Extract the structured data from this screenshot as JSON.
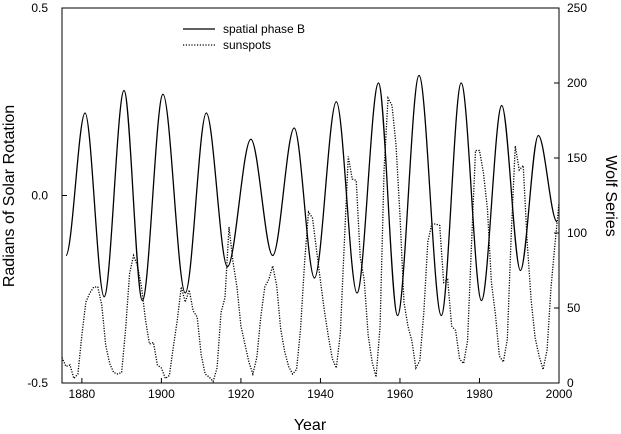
{
  "chart_data": {
    "type": "line",
    "title": "",
    "xlabel": "Year",
    "ylabel": "Radians of Solar Rotation",
    "y2label": "Wolf Series",
    "xlim": [
      1875,
      2000
    ],
    "ylim": [
      -0.5,
      0.5
    ],
    "y2lim": [
      0,
      250
    ],
    "x_ticks": [
      "1880",
      "1900",
      "1920",
      "1940",
      "1960",
      "1980",
      "2000"
    ],
    "y_ticks": [
      "0.5",
      "0.0",
      "-0.5"
    ],
    "y2_ticks": [
      "250",
      "200",
      "150",
      "100",
      "50",
      "0"
    ],
    "legend_position": "top-center",
    "grid": false,
    "series": [
      {
        "name": "spatial phase B",
        "axis": "left",
        "style": "solid",
        "color": "#000000",
        "x": [
          1876.0,
          1880.8,
          1885.6,
          1890.6,
          1895.2,
          1900.4,
          1906.0,
          1911.3,
          1916.6,
          1922.5,
          1928.0,
          1933.4,
          1938.5,
          1944.0,
          1949.2,
          1954.6,
          1959.4,
          1964.8,
          1970.4,
          1975.4,
          1980.5,
          1985.6,
          1990.3,
          1994.8,
          1999.5
        ],
        "values": [
          -0.16,
          0.22,
          -0.27,
          0.28,
          -0.28,
          0.27,
          -0.26,
          0.22,
          -0.19,
          0.15,
          -0.16,
          0.18,
          -0.22,
          0.25,
          -0.26,
          0.3,
          -0.32,
          0.32,
          -0.32,
          0.3,
          -0.28,
          0.24,
          -0.2,
          0.16,
          -0.07
        ]
      },
      {
        "name": "sunspots",
        "axis": "right",
        "style": "dotted",
        "color": "#000000",
        "x": [
          1875.0,
          1876.0,
          1877.0,
          1878.0,
          1879.0,
          1880.0,
          1881.0,
          1882.0,
          1883.0,
          1884.0,
          1885.0,
          1886.0,
          1887.0,
          1888.0,
          1889.0,
          1890.0,
          1891.0,
          1892.0,
          1893.0,
          1894.0,
          1895.0,
          1896.0,
          1897.0,
          1898.0,
          1899.0,
          1900.0,
          1901.0,
          1902.0,
          1903.0,
          1904.0,
          1905.0,
          1906.0,
          1907.0,
          1908.0,
          1909.0,
          1910.0,
          1911.0,
          1912.0,
          1913.0,
          1914.0,
          1915.0,
          1916.0,
          1917.0,
          1918.0,
          1919.0,
          1920.0,
          1921.0,
          1922.0,
          1923.0,
          1924.0,
          1925.0,
          1926.0,
          1927.0,
          1928.0,
          1929.0,
          1930.0,
          1931.0,
          1932.0,
          1933.0,
          1934.0,
          1935.0,
          1936.0,
          1937.0,
          1938.0,
          1939.0,
          1940.0,
          1941.0,
          1942.0,
          1943.0,
          1944.0,
          1945.0,
          1946.0,
          1947.0,
          1948.0,
          1949.0,
          1950.0,
          1951.0,
          1952.0,
          1953.0,
          1954.0,
          1955.0,
          1956.0,
          1957.0,
          1958.0,
          1959.0,
          1960.0,
          1961.0,
          1962.0,
          1963.0,
          1964.0,
          1965.0,
          1966.0,
          1967.0,
          1968.0,
          1969.0,
          1970.0,
          1971.0,
          1972.0,
          1973.0,
          1974.0,
          1975.0,
          1976.0,
          1977.0,
          1978.0,
          1979.0,
          1980.0,
          1981.0,
          1982.0,
          1983.0,
          1984.0,
          1985.0,
          1986.0,
          1987.0,
          1988.0,
          1989.0,
          1990.0,
          1991.0,
          1992.0,
          1993.0,
          1994.0,
          1995.0,
          1996.0,
          1997.0,
          1998.0,
          1999.0,
          2000.0
        ],
        "values": [
          17,
          11,
          12,
          3,
          6,
          32,
          54,
          60,
          64,
          64,
          52,
          25,
          13,
          7,
          6,
          7,
          36,
          73,
          85,
          78,
          64,
          42,
          26,
          27,
          12,
          10,
          3,
          5,
          24,
          42,
          64,
          54,
          62,
          48,
          44,
          19,
          6,
          4,
          1,
          10,
          47,
          57,
          104,
          81,
          64,
          38,
          26,
          14,
          6,
          17,
          44,
          64,
          69,
          78,
          65,
          36,
          21,
          11,
          6,
          9,
          36,
          80,
          114,
          110,
          89,
          68,
          48,
          31,
          16,
          10,
          33,
          93,
          151,
          136,
          135,
          84,
          69,
          32,
          14,
          4,
          38,
          142,
          190,
          185,
          159,
          112,
          54,
          38,
          28,
          10,
          15,
          47,
          94,
          106,
          106,
          105,
          67,
          69,
          38,
          35,
          16,
          13,
          28,
          93,
          155,
          155,
          140,
          116,
          67,
          46,
          18,
          14,
          29,
          100,
          158,
          142,
          145,
          94,
          55,
          30,
          18,
          9,
          22,
          64,
          93,
          120
        ]
      }
    ]
  }
}
